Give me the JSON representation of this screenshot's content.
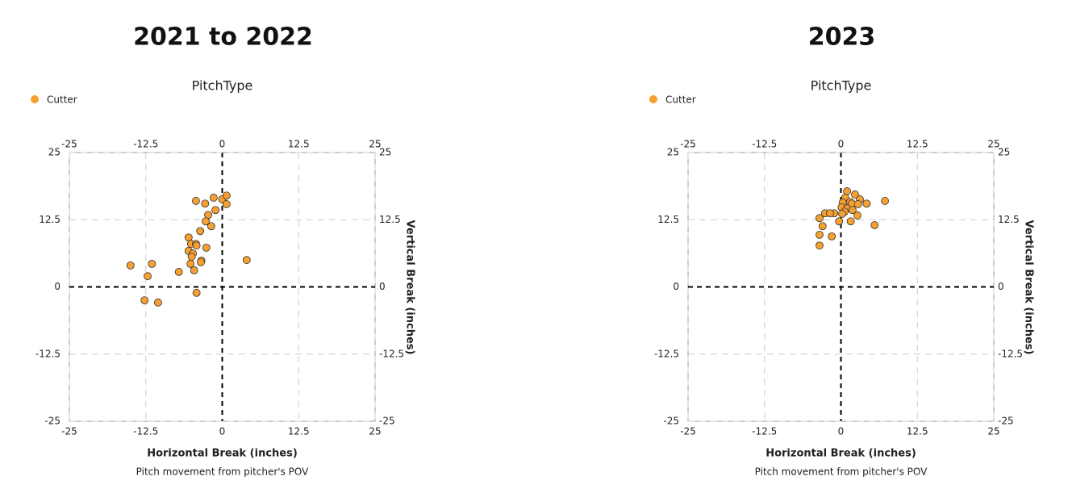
{
  "chart_data": [
    {
      "type": "scatter",
      "title": "2021 to 2022",
      "legend_title": "PitchType",
      "xlabel": "Horizontal Break (inches)",
      "ylabel": "Vertical Break (inches)",
      "caption": "Pitch movement from pitcher's POV",
      "xlim": [
        -25,
        25
      ],
      "ylim": [
        -25,
        25
      ],
      "xticks": [
        -25,
        -12.5,
        0,
        12.5,
        25
      ],
      "yticks": [
        -25,
        -12.5,
        0,
        12.5,
        25
      ],
      "grid": true,
      "series": [
        {
          "name": "Cutter",
          "color": "#f5a030",
          "x": [
            -4.3,
            -1.4,
            -2.8,
            0,
            0.7,
            0.7,
            -1.1,
            -2.3,
            -2.7,
            -1.8,
            -3.6,
            -5.5,
            -5.1,
            -4.3,
            -4.2,
            -2.6,
            -5.5,
            -4.8,
            -5.0,
            -3.4,
            -3.5,
            -5.2,
            -4.6,
            -7.1,
            4.0,
            -11.5,
            -15.0,
            -12.2,
            -12.7,
            -10.5,
            -4.2
          ],
          "values": [
            16.0,
            16.6,
            15.5,
            16.3,
            17.0,
            15.4,
            14.3,
            13.4,
            12.2,
            11.3,
            10.4,
            9.2,
            8.0,
            8.0,
            7.7,
            7.3,
            6.7,
            6.2,
            5.6,
            4.9,
            4.6,
            4.3,
            3.1,
            2.8,
            5.0,
            4.3,
            4.0,
            2.0,
            -2.5,
            -2.9,
            -1.1
          ]
        }
      ]
    },
    {
      "type": "scatter",
      "title": "2023",
      "legend_title": "PitchType",
      "xlabel": "Horizontal Break (inches)",
      "ylabel": "Vertical Break (inches)",
      "caption": "Pitch movement from pitcher's POV",
      "xlim": [
        -25,
        25
      ],
      "ylim": [
        -25,
        25
      ],
      "xticks": [
        -25,
        -12.5,
        0,
        12.5,
        25
      ],
      "yticks": [
        -25,
        -12.5,
        0,
        12.5,
        25
      ],
      "grid": true,
      "series": [
        {
          "name": "Cutter",
          "color": "#f5a030",
          "x": [
            1.0,
            2.3,
            0.7,
            3.1,
            7.2,
            1.5,
            0.3,
            1.8,
            2.8,
            4.2,
            0.1,
            1.0,
            1.9,
            -1.1,
            -2.6,
            -1.8,
            0.6,
            0.2,
            2.7,
            -3.5,
            -0.3,
            1.6,
            5.5,
            -3.0,
            -3.5,
            -1.5,
            -3.5
          ],
          "values": [
            17.8,
            17.2,
            16.6,
            16.3,
            16.0,
            15.8,
            15.7,
            15.5,
            15.4,
            15.5,
            14.8,
            14.6,
            14.3,
            13.7,
            13.7,
            13.7,
            14.0,
            13.6,
            13.3,
            12.8,
            12.2,
            12.2,
            11.5,
            11.3,
            9.7,
            9.4,
            7.7
          ]
        }
      ]
    }
  ]
}
